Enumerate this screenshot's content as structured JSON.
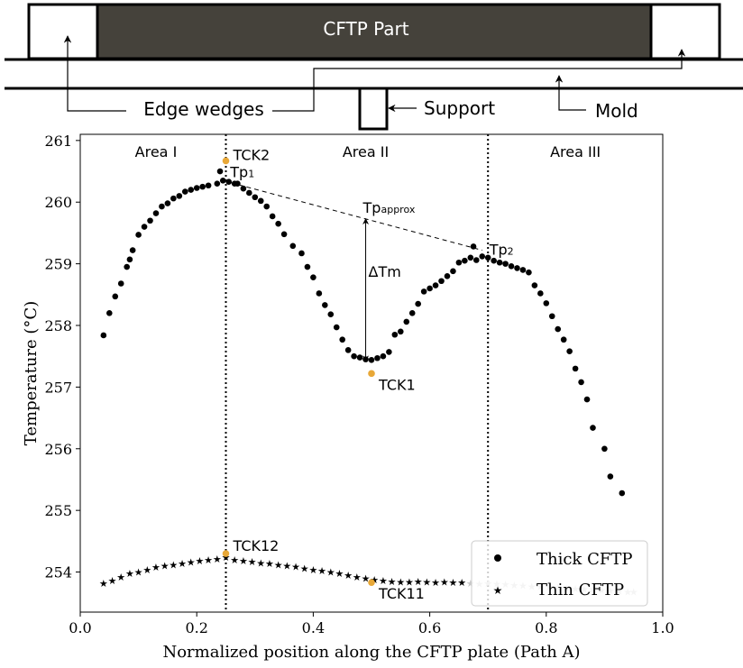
{
  "schematic": {
    "part_label": "CFTP Part",
    "edge_wedges_label": "Edge wedges",
    "support_label": "Support",
    "mold_label": "Mold",
    "colors": {
      "part_fill": "#45423b",
      "part_text": "#ffffff"
    }
  },
  "chart_data": {
    "type": "scatter",
    "xlabel": "Normalized position along the CFTP plate (Path A)",
    "ylabel": "Temperature (°C)",
    "xlim": [
      0.0,
      1.0
    ],
    "ylim": [
      253.35,
      261.1
    ],
    "x_ticks": [
      {
        "value": 0.0,
        "label": "0.0"
      },
      {
        "value": 0.2,
        "label": "0.2"
      },
      {
        "value": 0.4,
        "label": "0.4"
      },
      {
        "value": 0.6,
        "label": "0.6"
      },
      {
        "value": 0.8,
        "label": "0.8"
      },
      {
        "value": 1.0,
        "label": "1.0"
      }
    ],
    "y_ticks": [
      {
        "value": 254,
        "label": "254"
      },
      {
        "value": 255,
        "label": "255"
      },
      {
        "value": 256,
        "label": "256"
      },
      {
        "value": 257,
        "label": "257"
      },
      {
        "value": 258,
        "label": "258"
      },
      {
        "value": 259,
        "label": "259"
      },
      {
        "value": 260,
        "label": "260"
      },
      {
        "value": 261,
        "label": "261"
      }
    ],
    "grid": false,
    "legend_position": "bottom-right",
    "series": [
      {
        "name": "Thick CFTP",
        "marker": "circle",
        "color": "#000000",
        "points": [
          [
            0.04,
            257.84
          ],
          [
            0.05,
            258.2
          ],
          [
            0.06,
            258.47
          ],
          [
            0.07,
            258.68
          ],
          [
            0.08,
            258.95
          ],
          [
            0.085,
            259.07
          ],
          [
            0.09,
            259.22
          ],
          [
            0.1,
            259.47
          ],
          [
            0.11,
            259.6
          ],
          [
            0.12,
            259.7
          ],
          [
            0.13,
            259.82
          ],
          [
            0.14,
            259.93
          ],
          [
            0.15,
            259.98
          ],
          [
            0.16,
            260.06
          ],
          [
            0.17,
            260.1
          ],
          [
            0.18,
            260.17
          ],
          [
            0.19,
            260.2
          ],
          [
            0.2,
            260.23
          ],
          [
            0.21,
            260.25
          ],
          [
            0.22,
            260.27
          ],
          [
            0.235,
            260.3
          ],
          [
            0.24,
            260.5
          ],
          [
            0.245,
            260.35
          ],
          [
            0.255,
            260.33
          ],
          [
            0.265,
            260.3
          ],
          [
            0.27,
            260.3
          ],
          [
            0.28,
            260.22
          ],
          [
            0.29,
            260.15
          ],
          [
            0.3,
            260.08
          ],
          [
            0.31,
            260.02
          ],
          [
            0.32,
            259.93
          ],
          [
            0.33,
            259.77
          ],
          [
            0.34,
            259.65
          ],
          [
            0.35,
            259.48
          ],
          [
            0.365,
            259.29
          ],
          [
            0.38,
            259.17
          ],
          [
            0.39,
            258.95
          ],
          [
            0.4,
            258.78
          ],
          [
            0.41,
            258.52
          ],
          [
            0.42,
            258.33
          ],
          [
            0.43,
            258.18
          ],
          [
            0.44,
            257.97
          ],
          [
            0.45,
            257.77
          ],
          [
            0.46,
            257.6
          ],
          [
            0.47,
            257.5
          ],
          [
            0.48,
            257.48
          ],
          [
            0.49,
            257.45
          ],
          [
            0.5,
            257.44
          ],
          [
            0.51,
            257.47
          ],
          [
            0.52,
            257.5
          ],
          [
            0.53,
            257.57
          ],
          [
            0.54,
            257.85
          ],
          [
            0.55,
            257.9
          ],
          [
            0.56,
            258.06
          ],
          [
            0.57,
            258.2
          ],
          [
            0.58,
            258.35
          ],
          [
            0.59,
            258.55
          ],
          [
            0.6,
            258.6
          ],
          [
            0.61,
            258.65
          ],
          [
            0.62,
            258.72
          ],
          [
            0.63,
            258.8
          ],
          [
            0.64,
            258.88
          ],
          [
            0.65,
            259.02
          ],
          [
            0.66,
            259.05
          ],
          [
            0.67,
            259.1
          ],
          [
            0.675,
            259.28
          ],
          [
            0.68,
            259.06
          ],
          [
            0.69,
            259.12
          ],
          [
            0.7,
            259.1
          ],
          [
            0.71,
            259.05
          ],
          [
            0.72,
            259.02
          ],
          [
            0.73,
            259.0
          ],
          [
            0.74,
            258.96
          ],
          [
            0.75,
            258.93
          ],
          [
            0.76,
            258.9
          ],
          [
            0.77,
            258.86
          ],
          [
            0.78,
            258.65
          ],
          [
            0.79,
            258.52
          ],
          [
            0.8,
            258.36
          ],
          [
            0.81,
            258.15
          ],
          [
            0.82,
            257.94
          ],
          [
            0.83,
            257.77
          ],
          [
            0.84,
            257.58
          ],
          [
            0.85,
            257.3
          ],
          [
            0.86,
            257.08
          ],
          [
            0.87,
            256.8
          ],
          [
            0.88,
            256.34
          ],
          [
            0.9,
            256.0
          ],
          [
            0.91,
            255.55
          ],
          [
            0.93,
            255.28
          ]
        ]
      },
      {
        "name": "Thin CFTP",
        "marker": "star",
        "color": "#000000",
        "points": [
          [
            0.04,
            253.82
          ],
          [
            0.055,
            253.86
          ],
          [
            0.07,
            253.92
          ],
          [
            0.085,
            253.98
          ],
          [
            0.1,
            254.0
          ],
          [
            0.115,
            254.04
          ],
          [
            0.13,
            254.08
          ],
          [
            0.145,
            254.1
          ],
          [
            0.16,
            254.12
          ],
          [
            0.175,
            254.14
          ],
          [
            0.19,
            254.16
          ],
          [
            0.205,
            254.18
          ],
          [
            0.22,
            254.2
          ],
          [
            0.235,
            254.21
          ],
          [
            0.25,
            254.24
          ],
          [
            0.265,
            254.2
          ],
          [
            0.28,
            254.18
          ],
          [
            0.295,
            254.17
          ],
          [
            0.31,
            254.15
          ],
          [
            0.325,
            254.14
          ],
          [
            0.34,
            254.12
          ],
          [
            0.355,
            254.1
          ],
          [
            0.37,
            254.09
          ],
          [
            0.385,
            254.06
          ],
          [
            0.4,
            254.04
          ],
          [
            0.415,
            254.02
          ],
          [
            0.43,
            254.0
          ],
          [
            0.445,
            253.98
          ],
          [
            0.46,
            253.95
          ],
          [
            0.475,
            253.92
          ],
          [
            0.49,
            253.9
          ],
          [
            0.505,
            253.88
          ],
          [
            0.52,
            253.86
          ],
          [
            0.535,
            253.85
          ],
          [
            0.55,
            253.84
          ],
          [
            0.565,
            253.84
          ],
          [
            0.58,
            253.85
          ],
          [
            0.595,
            253.84
          ],
          [
            0.61,
            253.83
          ],
          [
            0.625,
            253.84
          ],
          [
            0.64,
            253.83
          ],
          [
            0.655,
            253.83
          ],
          [
            0.67,
            253.82
          ],
          [
            0.685,
            253.81
          ],
          [
            0.7,
            253.82
          ],
          [
            0.715,
            253.81
          ],
          [
            0.73,
            253.8
          ],
          [
            0.745,
            253.79
          ],
          [
            0.76,
            253.78
          ],
          [
            0.775,
            253.77
          ],
          [
            0.79,
            253.77
          ],
          [
            0.805,
            253.76
          ],
          [
            0.82,
            253.75
          ],
          [
            0.835,
            253.74
          ],
          [
            0.85,
            253.73
          ],
          [
            0.865,
            253.72
          ],
          [
            0.88,
            253.72
          ],
          [
            0.895,
            253.71
          ],
          [
            0.91,
            253.7
          ],
          [
            0.925,
            253.69
          ],
          [
            0.94,
            253.68
          ],
          [
            0.95,
            253.68
          ]
        ]
      }
    ],
    "highlight_points": [
      {
        "label": "TCK2",
        "x": 0.25,
        "y": 260.67,
        "color": "#e8a838"
      },
      {
        "label": "TCK1",
        "x": 0.5,
        "y": 257.22,
        "color": "#e8a838"
      },
      {
        "label": "TCK12",
        "x": 0.25,
        "y": 254.3,
        "color": "#e8a838"
      },
      {
        "label": "TCK11",
        "x": 0.5,
        "y": 253.83,
        "color": "#e8a838"
      }
    ],
    "vertical_lines": [
      {
        "x": 0.25
      },
      {
        "x": 0.7
      }
    ],
    "areas": [
      {
        "label": "Area I",
        "x": 0.13
      },
      {
        "label": "Area II",
        "x": 0.49
      },
      {
        "label": "Area III",
        "x": 0.85
      }
    ],
    "peaks": [
      {
        "label_main": "Tp",
        "label_sub": "1",
        "x": 0.245,
        "y": 260.35
      },
      {
        "label_main": "Tp",
        "label_sub": "2",
        "x": 0.69,
        "y": 259.22
      }
    ],
    "tp_approx": {
      "label_main": "Tp",
      "label_sub": "approx",
      "x1": 0.245,
      "y1": 260.35,
      "x2": 0.69,
      "y2": 259.22
    },
    "delta_tm": {
      "label": "ΔTm",
      "x": 0.49,
      "y_top": 259.73,
      "y_bottom": 257.42
    }
  }
}
